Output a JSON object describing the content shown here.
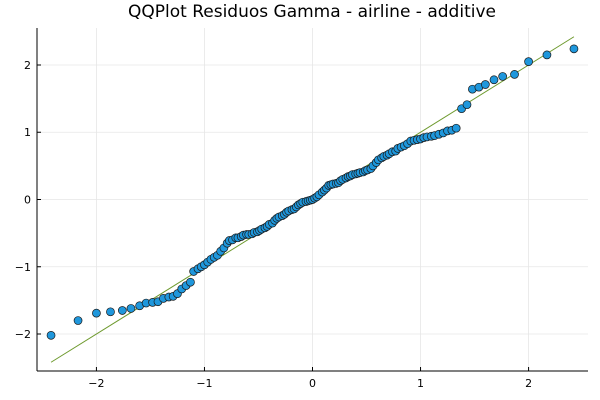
{
  "chart_data": {
    "type": "scatter",
    "title": "QQPlot Residuos Gamma - airline - additive",
    "xlabel": "",
    "ylabel": "",
    "xlim": [
      -2.55,
      2.55
    ],
    "ylim": [
      -2.55,
      2.55
    ],
    "xticks": [
      -2,
      -1,
      0,
      1,
      2
    ],
    "yticks": [
      -2,
      -1,
      0,
      1,
      2
    ],
    "xtick_labels": [
      "−2",
      "−1",
      "0",
      "1",
      "2"
    ],
    "ytick_labels": [
      "−2",
      "−1",
      "0",
      "1",
      "2"
    ],
    "grid": true,
    "legend": "none",
    "reference_line": {
      "x": [
        -2.42,
        2.42
      ],
      "y": [
        -2.42,
        2.42
      ],
      "color": "#6e9a2e"
    },
    "marker_color": "#1f97dc",
    "marker_edge": "#1a1a1a",
    "points": {
      "x": [
        -2.42,
        -2.17,
        -2.0,
        -1.87,
        -1.76,
        -1.68,
        -1.6,
        -1.54,
        -1.48,
        -1.43,
        -1.38,
        -1.33,
        -1.29,
        -1.25,
        -1.21,
        -1.17,
        -1.13,
        -1.1,
        -1.06,
        -1.03,
        -1.0,
        -0.97,
        -0.94,
        -0.91,
        -0.88,
        -0.85,
        -0.82,
        -0.79,
        -0.77,
        -0.74,
        -0.71,
        -0.69,
        -0.66,
        -0.64,
        -0.61,
        -0.59,
        -0.56,
        -0.54,
        -0.51,
        -0.49,
        -0.47,
        -0.44,
        -0.42,
        -0.4,
        -0.37,
        -0.35,
        -0.33,
        -0.31,
        -0.28,
        -0.26,
        -0.24,
        -0.22,
        -0.19,
        -0.17,
        -0.15,
        -0.13,
        -0.11,
        -0.09,
        -0.06,
        -0.04,
        -0.02,
        0.0,
        0.02,
        0.04,
        0.06,
        0.09,
        0.11,
        0.13,
        0.15,
        0.17,
        0.19,
        0.22,
        0.24,
        0.26,
        0.28,
        0.31,
        0.33,
        0.35,
        0.37,
        0.4,
        0.42,
        0.44,
        0.47,
        0.49,
        0.51,
        0.54,
        0.56,
        0.59,
        0.61,
        0.64,
        0.66,
        0.69,
        0.71,
        0.74,
        0.77,
        0.79,
        0.82,
        0.85,
        0.88,
        0.91,
        0.94,
        0.97,
        1.0,
        1.03,
        1.06,
        1.1,
        1.13,
        1.17,
        1.21,
        1.25,
        1.29,
        1.33,
        1.38,
        1.43,
        1.48,
        1.54,
        1.6,
        1.68,
        1.76,
        1.87,
        2.0,
        2.17,
        2.42
      ],
      "y": [
        -2.02,
        -1.8,
        -1.69,
        -1.67,
        -1.65,
        -1.62,
        -1.58,
        -1.54,
        -1.53,
        -1.52,
        -1.47,
        -1.45,
        -1.44,
        -1.4,
        -1.33,
        -1.28,
        -1.23,
        -1.07,
        -1.03,
        -1.0,
        -0.97,
        -0.93,
        -0.89,
        -0.86,
        -0.83,
        -0.77,
        -0.72,
        -0.65,
        -0.61,
        -0.6,
        -0.57,
        -0.57,
        -0.55,
        -0.53,
        -0.52,
        -0.52,
        -0.51,
        -0.49,
        -0.48,
        -0.46,
        -0.44,
        -0.42,
        -0.4,
        -0.37,
        -0.35,
        -0.31,
        -0.28,
        -0.26,
        -0.24,
        -0.22,
        -0.19,
        -0.17,
        -0.15,
        -0.14,
        -0.11,
        -0.08,
        -0.06,
        -0.04,
        -0.03,
        -0.02,
        -0.01,
        0.0,
        0.02,
        0.04,
        0.07,
        0.11,
        0.14,
        0.17,
        0.21,
        0.22,
        0.23,
        0.24,
        0.25,
        0.28,
        0.3,
        0.32,
        0.34,
        0.35,
        0.37,
        0.38,
        0.39,
        0.4,
        0.41,
        0.43,
        0.44,
        0.46,
        0.5,
        0.55,
        0.59,
        0.62,
        0.64,
        0.66,
        0.68,
        0.71,
        0.72,
        0.76,
        0.78,
        0.8,
        0.83,
        0.87,
        0.88,
        0.89,
        0.9,
        0.92,
        0.93,
        0.94,
        0.95,
        0.97,
        0.99,
        1.02,
        1.03,
        1.06,
        1.35,
        1.41,
        1.64,
        1.67,
        1.71,
        1.78,
        1.83,
        1.86,
        2.05,
        2.15,
        2.24
      ]
    }
  }
}
